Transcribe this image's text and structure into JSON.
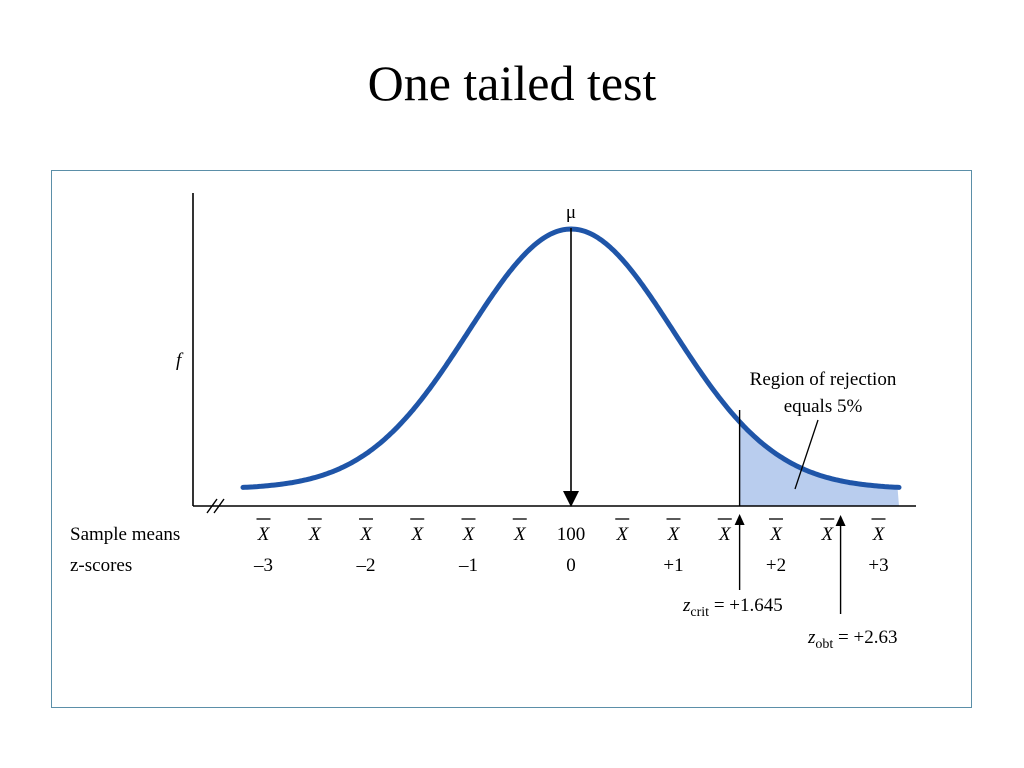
{
  "title": "One tailed test",
  "chart_data": {
    "type": "area",
    "title": "One tailed test",
    "distribution": "normal",
    "ylabel": "f",
    "mean_label": "μ",
    "mean_value": "100",
    "xlim": [
      -3.2,
      3.2
    ],
    "row_labels": {
      "sample_means": "Sample means",
      "z_scores": "z-scores"
    },
    "sample_mean_positions": [
      -3,
      -2.5,
      -2,
      -1.5,
      -1,
      -0.5,
      0.5,
      1,
      1.5,
      2,
      2.5,
      3
    ],
    "sample_mean_symbol": "X",
    "z_ticks": [
      {
        "z": -3,
        "label": "–3"
      },
      {
        "z": -2,
        "label": "–2"
      },
      {
        "z": -1,
        "label": "–1"
      },
      {
        "z": 0,
        "label": "0"
      },
      {
        "z": 1,
        "label": "+1"
      },
      {
        "z": 2,
        "label": "+2"
      },
      {
        "z": 3,
        "label": "+3"
      }
    ],
    "z_crit": {
      "value": 1.645,
      "symbol": "z",
      "subscript": "crit",
      "text": "= +1.645"
    },
    "z_obt": {
      "value": 2.63,
      "symbol": "z",
      "subscript": "obt",
      "text": "= +2.63"
    },
    "rejection_region": {
      "from_z": 1.645,
      "label_line1": "Region of rejection",
      "label_line2": "equals 5%"
    },
    "colors": {
      "curve": "#1f55a8",
      "fill": "#b9cdee",
      "frame": "#5b8fa8"
    }
  }
}
